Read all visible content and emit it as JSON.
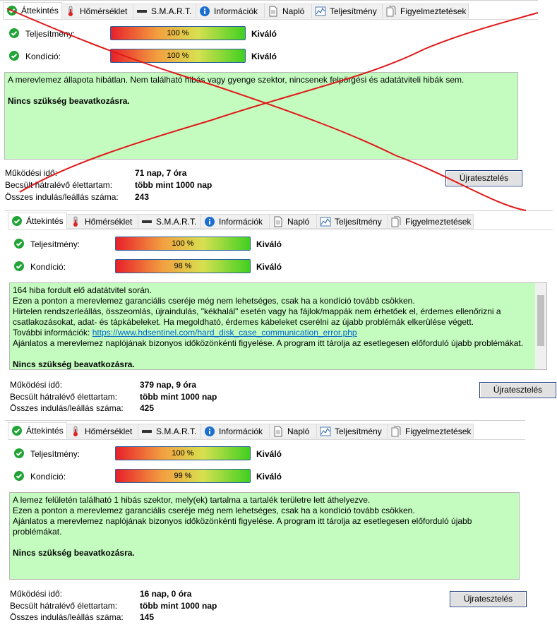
{
  "panels": [
    {
      "tabs": [
        "Áttekintés",
        "Hőmérséklet",
        "S.M.A.R.T.",
        "Információk",
        "Napló",
        "Teljesítmény",
        "Figyelmeztetések"
      ],
      "performance": {
        "label": "Teljesítmény:",
        "value": "100 %",
        "rating": "Kiváló"
      },
      "condition": {
        "label": "Kondíció:",
        "value": "100 %",
        "rating": "Kiváló"
      },
      "message": {
        "lines": [
          "A merevlemez állapota hibátlan. Nem található hibás vagy gyenge szektor, nincsenek felpörgési és adatátviteli hibák sem."
        ],
        "action": "Nincs szükség beavatkozásra."
      },
      "stats": [
        {
          "label": "Működési idő:",
          "value": "71 nap, 7 óra"
        },
        {
          "label": "Becsült hátralévő élettartam:",
          "value": "több mint 1000 nap"
        },
        {
          "label": "Összes indulás/leállás száma:",
          "value": "243"
        }
      ],
      "button": "Újratesztelés"
    },
    {
      "tabs": [
        "Áttekintés",
        "Hőmérséklet",
        "S.M.A.R.T.",
        "Információk",
        "Napló",
        "Teljesítmény",
        "Figyelmeztetések"
      ],
      "performance": {
        "label": "Teljesítmény:",
        "value": "100 %",
        "rating": "Kiváló"
      },
      "condition": {
        "label": "Kondíció:",
        "value": "98 %",
        "rating": "Kiváló"
      },
      "message": {
        "lines": [
          "164 hiba fordult elő adatátvitel során.",
          "Ezen a ponton a merevlemez garanciális cseréje még nem lehetséges, csak ha a kondíció tovább csökken.",
          "Hirtelen rendszerleállás, összeomlás, újraindulás, \"kékhalál\" esetén vagy ha fájlok/mappák nem érhetőek el, érdemes ellenőrizni a csatlakozásokat, adat- és tápkábeleket. Ha megoldható, érdemes kábeleket cserélni az újabb problémák elkerülése végett.",
          {
            "text": "További információk:",
            "link": "https://www.hdsentinel.com/hard_disk_case_communication_error.php"
          },
          "Ajánlatos a merevlemez naplójának bizonyos időközönkénti figyelése. A program itt tárolja az esetlegesen előforduló újabb problémákat."
        ],
        "action": "Nincs szükség beavatkozásra."
      },
      "stats": [
        {
          "label": "Működési idő:",
          "value": "379 nap, 9 óra"
        },
        {
          "label": "Becsült hátralévő élettartam:",
          "value": "több mint 1000 nap"
        },
        {
          "label": "Összes indulás/leállás száma:",
          "value": "425"
        }
      ],
      "button": "Újratesztelés"
    },
    {
      "tabs": [
        "Áttekintés",
        "Hőmérséklet",
        "S.M.A.R.T.",
        "Információk",
        "Napló",
        "Teljesítmény",
        "Figyelmeztetések"
      ],
      "performance": {
        "label": "Teljesítmény:",
        "value": "100 %",
        "rating": "Kiváló"
      },
      "condition": {
        "label": "Kondíció:",
        "value": "99 %",
        "rating": "Kiváló"
      },
      "message": {
        "lines": [
          "A lemez felületén található 1 hibás szektor, mely(ek) tartalma a tartalék területre lett áthelyezve.",
          "Ezen a ponton a merevlemez garanciális cseréje még nem lehetséges, csak ha a kondíció tovább csökken.",
          "Ajánlatos a merevlemez naplójának bizonyos időközönkénti figyelése. A program itt tárolja az esetlegesen előforduló újabb problémákat."
        ],
        "action": "Nincs szükség beavatkozásra."
      },
      "stats": [
        {
          "label": "Működési idő:",
          "value": "16 nap, 0 óra"
        },
        {
          "label": "Becsült hátralévő élettartam:",
          "value": "több mint 1000 nap"
        },
        {
          "label": "Összes indulás/leállás száma:",
          "value": "145"
        }
      ],
      "button": "Újratesztelés"
    }
  ]
}
